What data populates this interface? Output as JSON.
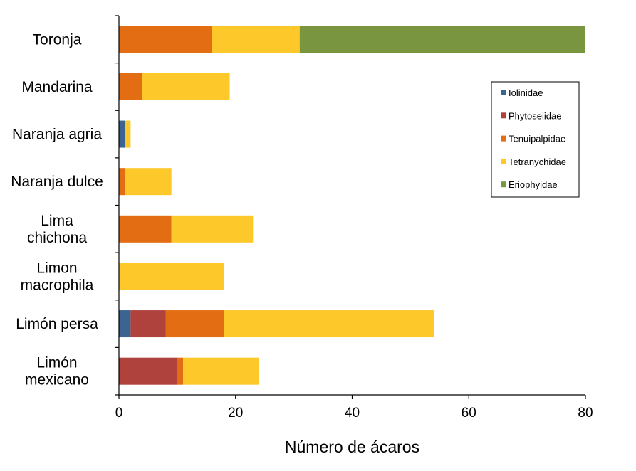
{
  "chart_data": {
    "type": "bar",
    "orientation": "horizontal",
    "stacked": true,
    "categories": [
      "Toronja",
      "Mandarina",
      "Naranja agria",
      "Naranja dulce",
      "Lima chichona",
      "Limon macrophila",
      "Limón persa",
      "Limón mexicano"
    ],
    "category_lines": [
      [
        "Toronja"
      ],
      [
        "Mandarina"
      ],
      [
        "Naranja agria"
      ],
      [
        "Naranja dulce"
      ],
      [
        "Lima",
        "chichona"
      ],
      [
        "Limon",
        "macrophila"
      ],
      [
        "Limón persa"
      ],
      [
        "Limón",
        "mexicano"
      ]
    ],
    "series": [
      {
        "name": "Iolinidae",
        "color": "#3b6590",
        "values": [
          0,
          0,
          1,
          0,
          0,
          0,
          2,
          0
        ]
      },
      {
        "name": "Phytoseiidae",
        "color": "#b0423e",
        "values": [
          0,
          0,
          0,
          0,
          0,
          0,
          6,
          10
        ]
      },
      {
        "name": "Tenuipalpidae",
        "color": "#e36d12",
        "values": [
          16,
          4,
          0,
          1,
          9,
          0,
          10,
          1
        ]
      },
      {
        "name": "Tetranychidae",
        "color": "#fdc82a",
        "values": [
          15,
          15,
          1,
          8,
          14,
          18,
          36,
          13
        ]
      },
      {
        "name": "Eriophyidae",
        "color": "#79953f",
        "values": [
          49,
          0,
          0,
          0,
          0,
          0,
          0,
          0
        ]
      }
    ],
    "xlabel": "Número de ácaros",
    "ylabel": "",
    "xlim": [
      0,
      80
    ],
    "xticks": [
      "0",
      "20",
      "40",
      "60",
      "80"
    ],
    "grid": false,
    "legend_position": "right"
  }
}
